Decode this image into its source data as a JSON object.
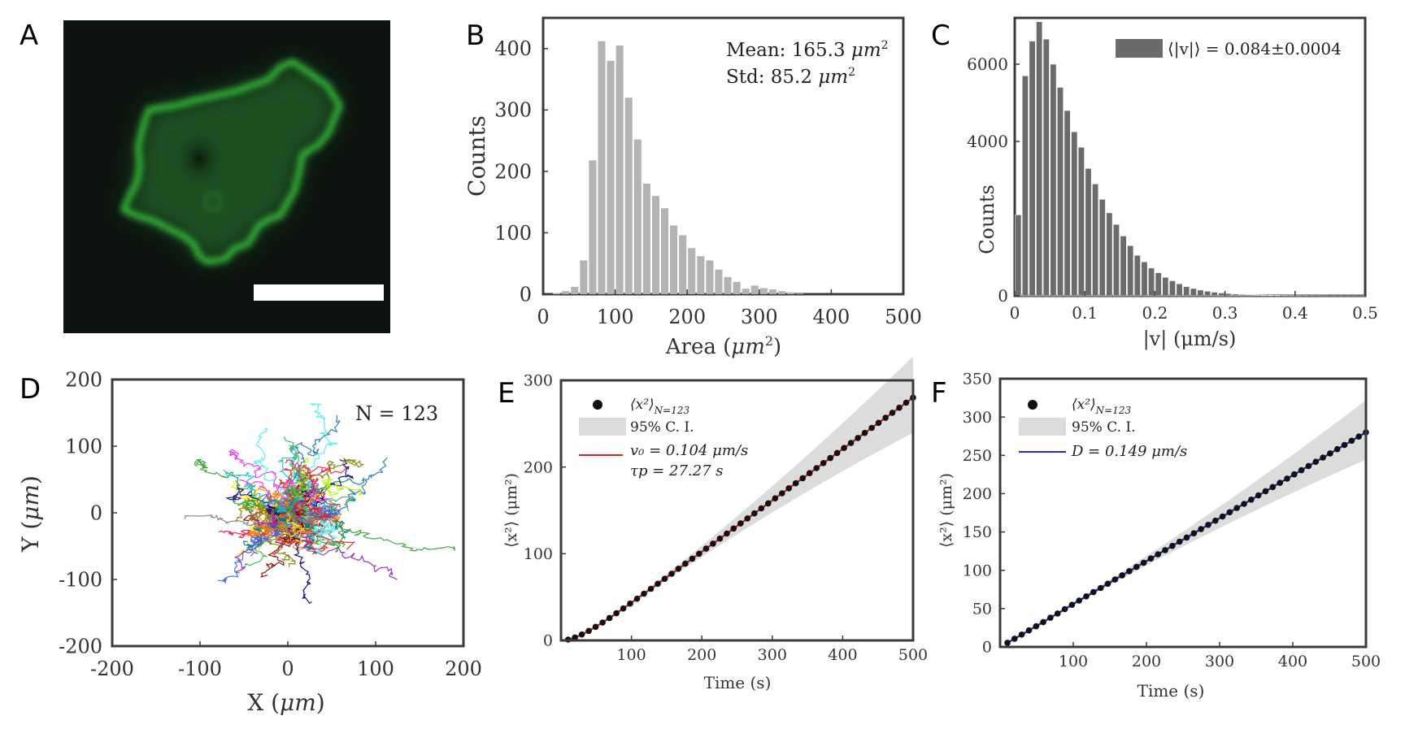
{
  "figure_labels": [
    "A",
    "B",
    "C",
    "D",
    "E",
    "F"
  ],
  "colors": {
    "cell_green": "#34c23a",
    "cell_dark_green": "#1c5a1e",
    "micrograph_bg": "#0d1410",
    "hist_b": "#b3b3b3",
    "hist_c": "#6b6b6b",
    "axis": "#3a3a3a",
    "ci_band": "#dcdcdc",
    "fit_e": "#e02020",
    "fit_f": "#2030c8",
    "dots": "#111111"
  },
  "chart_data": [
    {
      "panel": "A",
      "type": "image",
      "description_text": "",
      "scale_bar": true
    },
    {
      "panel": "B",
      "type": "bar",
      "xlabel": "Area (",
      "xlabel_math": "μm",
      "xlabel_sup": "2",
      "xlabel_close": ")",
      "ylabel": "Counts",
      "xlim": [
        0,
        500
      ],
      "ylim": [
        0,
        450
      ],
      "xticks": [
        0,
        100,
        200,
        300,
        400,
        500
      ],
      "yticks": [
        0,
        100,
        200,
        300,
        400
      ],
      "bin_width": 12.5,
      "bin_start": 0,
      "values": [
        0,
        2,
        5,
        12,
        55,
        218,
        412,
        380,
        405,
        320,
        252,
        180,
        160,
        140,
        112,
        96,
        75,
        62,
        55,
        40,
        28,
        20,
        9,
        14,
        10,
        8,
        5,
        3,
        1,
        0,
        0,
        0,
        0,
        0,
        0,
        0,
        0,
        0,
        0,
        0
      ],
      "annotations": [
        {
          "label": "Mean: 165.3 ",
          "math": "μm",
          "sup": "2"
        },
        {
          "label": "Std: 85.2 ",
          "math": "μm",
          "sup": "2"
        }
      ]
    },
    {
      "panel": "C",
      "type": "bar",
      "xlabel": "|v| (μm/s)",
      "ylabel": "Counts",
      "xlim": [
        0,
        0.5
      ],
      "ylim": [
        0,
        7200
      ],
      "xticks": [
        0,
        0.1,
        0.2,
        0.3,
        0.4,
        0.5
      ],
      "xtick_labels": [
        "0",
        "0.1",
        "0.2",
        "0.3",
        "0.4",
        "0.5"
      ],
      "yticks": [
        0,
        4000,
        6000
      ],
      "bin_width": 0.01,
      "bin_start": 0,
      "values": [
        2100,
        5700,
        6600,
        7100,
        6650,
        6000,
        5400,
        4800,
        4250,
        3850,
        3300,
        2900,
        2500,
        2150,
        1850,
        1550,
        1300,
        1050,
        880,
        720,
        600,
        480,
        390,
        310,
        240,
        190,
        150,
        120,
        95,
        75,
        60,
        45,
        35,
        28,
        22,
        18,
        14,
        11,
        8,
        6,
        5,
        4,
        3,
        3,
        2,
        2,
        1,
        1,
        1,
        1
      ],
      "legend": "⟨|v|⟩ = 0.084±0.0004"
    },
    {
      "panel": "D",
      "type": "line",
      "xlabel": "X (",
      "xlabel_math": "μm",
      "xlabel_close": ")",
      "ylabel": "Y (",
      "ylabel_math": "μm",
      "ylabel_close": ")",
      "xlim": [
        -200,
        200
      ],
      "ylim": [
        -200,
        200
      ],
      "xticks": [
        -200,
        -100,
        0,
        100,
        200
      ],
      "yticks": [
        -200,
        -100,
        0,
        100,
        200
      ],
      "annotation": "N = 123",
      "n_tracks": 123,
      "track_colors": [
        "#e6194b",
        "#3cb44b",
        "#ffe119",
        "#4363d8",
        "#f58231",
        "#911eb4",
        "#46f0f0",
        "#f032e6",
        "#bcf60c",
        "#008080",
        "#9a6324",
        "#800000",
        "#000075",
        "#808000",
        "#1f77b4",
        "#2ca02c",
        "#d62728",
        "#17becf",
        "#7f7f7f",
        "#ff7f0e"
      ]
    },
    {
      "panel": "E",
      "type": "line",
      "xlabel": "Time (s)",
      "ylabel": "⟨x²⟩ (μm²)",
      "xlim": [
        0,
        500
      ],
      "ylim": [
        0,
        300
      ],
      "xticks": [
        100,
        200,
        300,
        400,
        500
      ],
      "yticks": [
        0,
        100,
        200,
        300
      ],
      "series": [
        {
          "name": "⟨x²⟩",
          "subscript": "N=123",
          "style": "dots"
        },
        {
          "name": "95% C. I.",
          "style": "band"
        },
        {
          "name": "v₀ = 0.104 μm/s",
          "style": "line",
          "v0": 0.104,
          "tau": 27.27
        }
      ],
      "legend": [
        {
          "label": "⟨x²⟩",
          "sub": "N=123"
        },
        {
          "label": "95% C. I."
        },
        {
          "label": "v₀ = 0.104 μm/s"
        },
        {
          "label": "τp = 27.27 s"
        }
      ]
    },
    {
      "panel": "F",
      "type": "line",
      "xlabel": "Time (s)",
      "ylabel": "⟨x²⟩ (μm²)",
      "xlim": [
        0,
        500
      ],
      "ylim": [
        0,
        350
      ],
      "xticks": [
        100,
        200,
        300,
        400,
        500
      ],
      "yticks": [
        0,
        50,
        100,
        150,
        200,
        250,
        300,
        350
      ],
      "series": [
        {
          "name": "⟨x²⟩",
          "subscript": "N=123",
          "style": "dots"
        },
        {
          "name": "95% C. I.",
          "style": "band"
        },
        {
          "name": "D = 0.149 μm/s",
          "style": "line",
          "D": 0.149
        }
      ],
      "legend": [
        {
          "label": "⟨x²⟩",
          "sub": "N=123"
        },
        {
          "label": "95% C. I."
        },
        {
          "label": "D = 0.149 μm/s"
        }
      ]
    }
  ]
}
